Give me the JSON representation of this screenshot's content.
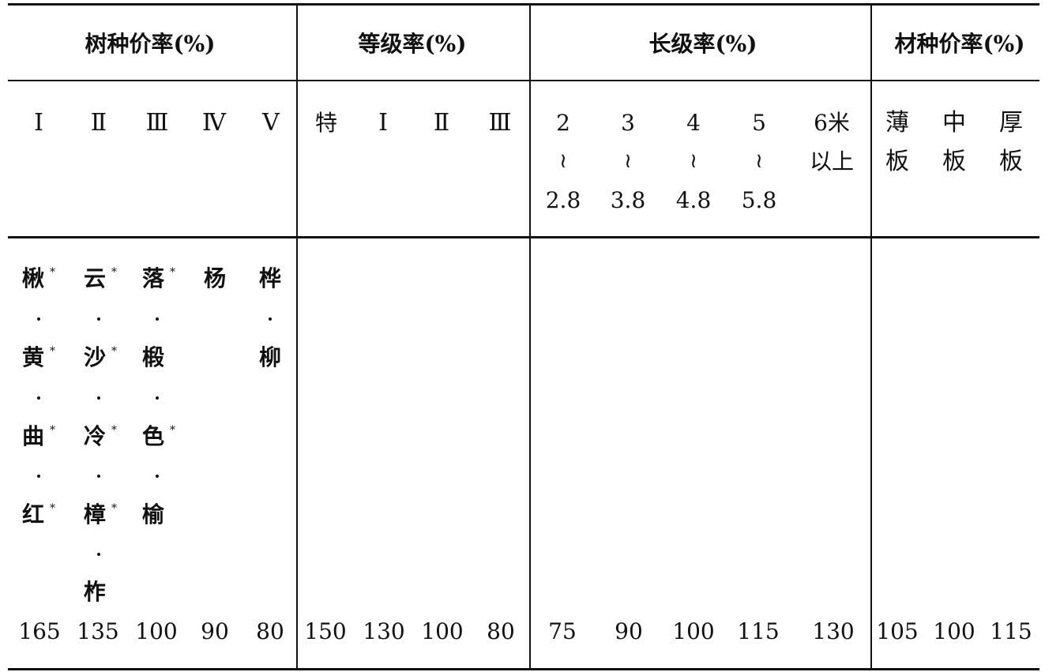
{
  "groups": {
    "species": "树种价率(%)",
    "grade": "等级率(%)",
    "length": "长级率(%)",
    "material": "材种价率(%)"
  },
  "species_classes": [
    "Ⅰ",
    "Ⅱ",
    "Ⅲ",
    "Ⅳ",
    "Ⅴ"
  ],
  "grade_classes": [
    "特",
    "Ⅰ",
    "Ⅱ",
    "Ⅲ"
  ],
  "length_classes": [
    {
      "from": "2",
      "sep": "≀",
      "to": "2.8"
    },
    {
      "from": "3",
      "sep": "≀",
      "to": "3.8"
    },
    {
      "from": "4",
      "sep": "≀",
      "to": "4.8"
    },
    {
      "from": "5",
      "sep": "≀",
      "to": "5.8"
    },
    {
      "line1": "6米",
      "line2": "以上"
    }
  ],
  "material_classes": [
    {
      "line1": "薄",
      "line2": "板"
    },
    {
      "line1": "中",
      "line2": "板"
    },
    {
      "line1": "厚",
      "line2": "板"
    }
  ],
  "species_lists": [
    [
      "楸",
      "黄",
      "曲",
      "红"
    ],
    [
      "云",
      "沙",
      "冷",
      "樟",
      "柞"
    ],
    [
      "落",
      "椴",
      "色",
      "榆"
    ],
    [
      "杨"
    ],
    [
      "桦",
      "柳"
    ]
  ],
  "marker": "*",
  "values": {
    "species": [
      "165",
      "135",
      "100",
      "90",
      "80"
    ],
    "grade": [
      "150",
      "130",
      "100",
      "80"
    ],
    "length": [
      "75",
      "90",
      "100",
      "115",
      "130"
    ],
    "material": [
      "105",
      "100",
      "115"
    ]
  }
}
